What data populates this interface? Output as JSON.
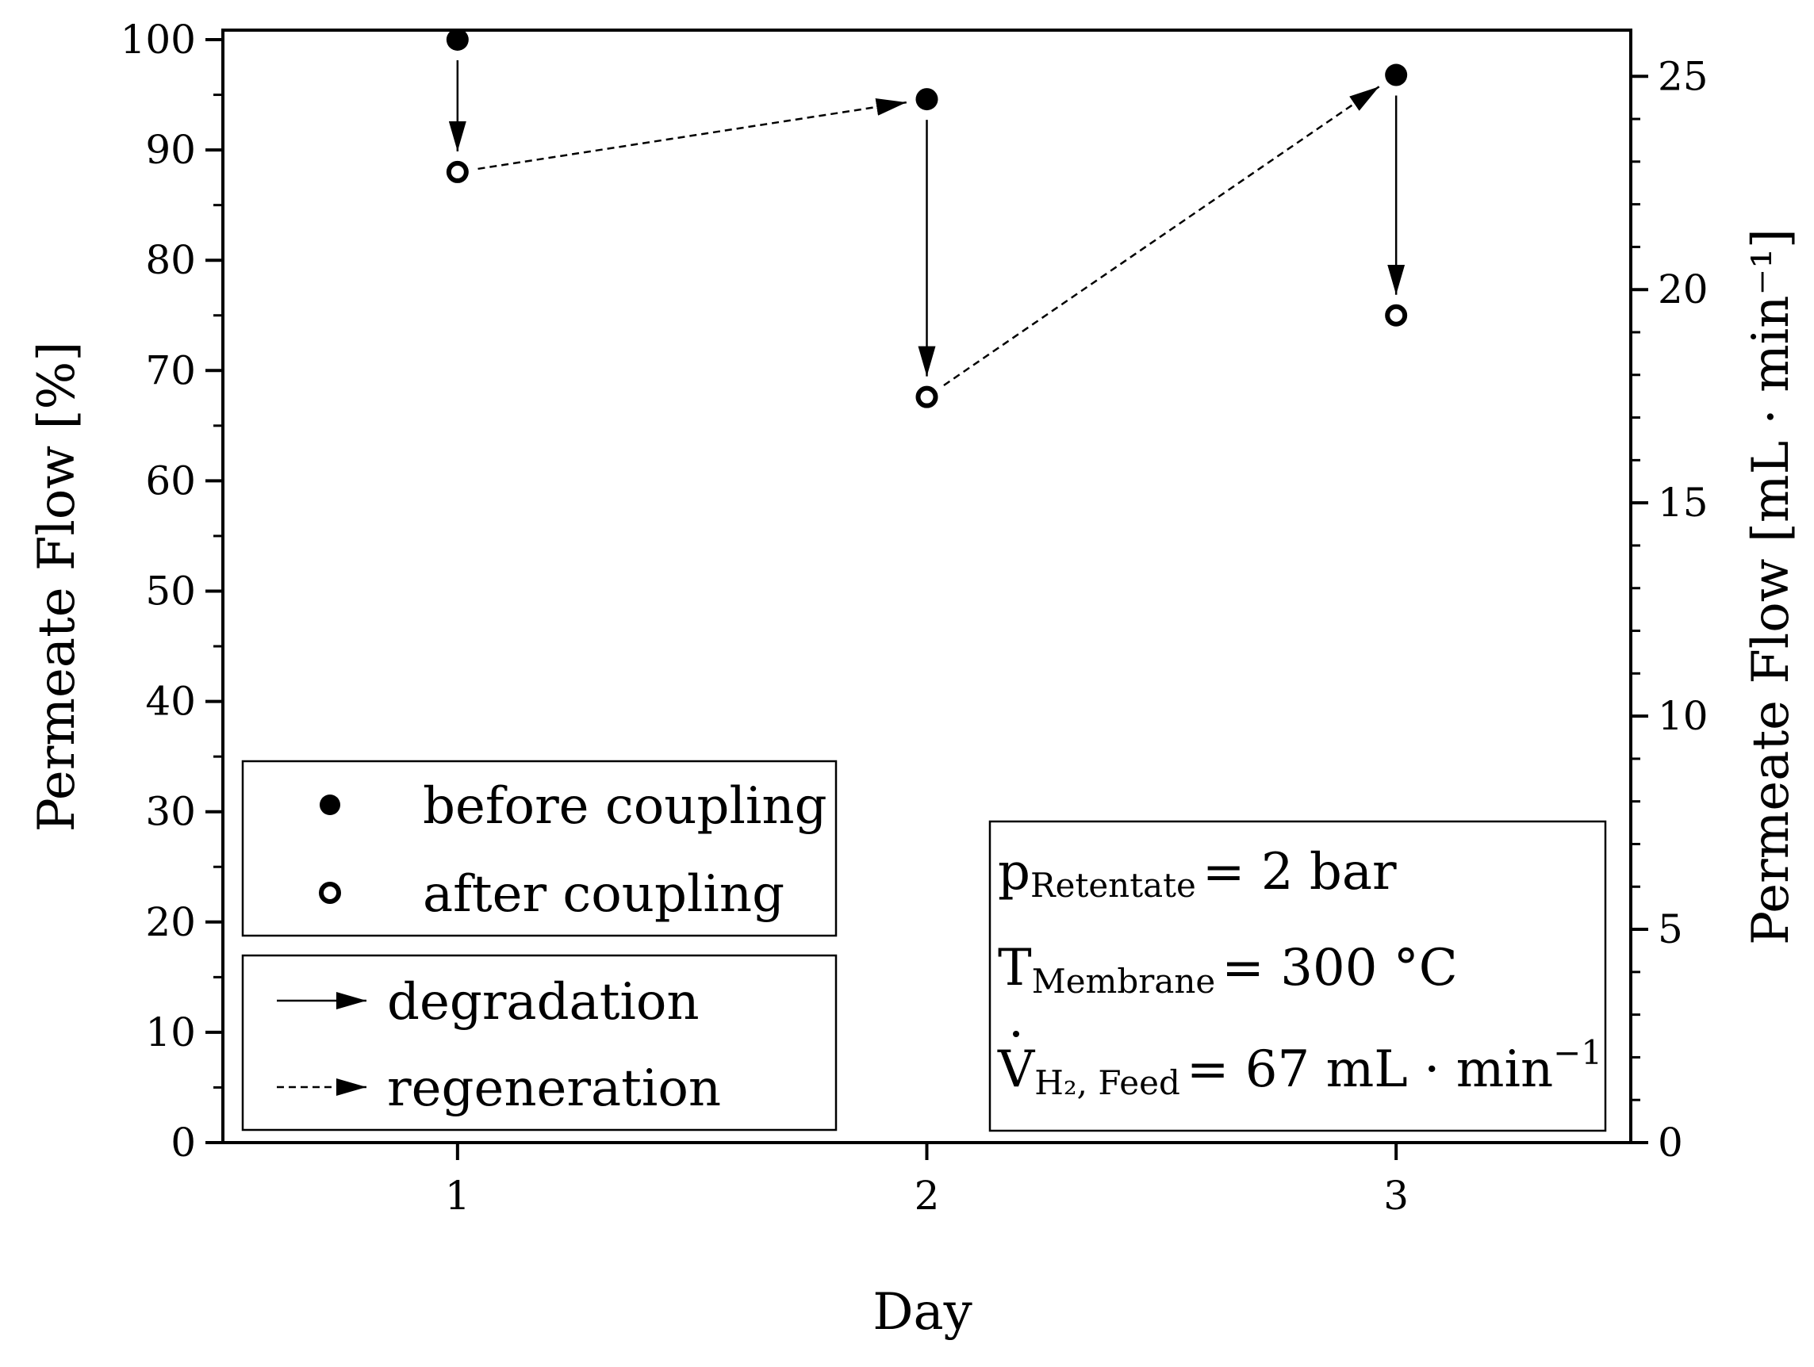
{
  "chart_data": {
    "type": "scatter",
    "xlabel": "Day",
    "ylabel_left": "Permeate Flow [%]",
    "ylabel_right": "Permeate Flow [mL · min⁻¹]",
    "xlim": [
      0.5,
      3.5
    ],
    "ylim_left": [
      0,
      100
    ],
    "ylim_right": [
      0,
      25.86
    ],
    "x_ticks": [
      "1",
      "2",
      "3"
    ],
    "y_left_ticks": [
      "0",
      "10",
      "20",
      "30",
      "40",
      "50",
      "60",
      "70",
      "80",
      "90",
      "100"
    ],
    "y_right_ticks": [
      "0",
      "5",
      "10",
      "15",
      "20",
      "25"
    ],
    "grid": false,
    "series": [
      {
        "name": "before coupling",
        "marker": "filled-circle",
        "x": [
          1,
          2,
          3
        ],
        "y": [
          100,
          94.6,
          96.8
        ]
      },
      {
        "name": "after coupling",
        "marker": "open-circle",
        "x": [
          1,
          2,
          3
        ],
        "y": [
          88,
          67.6,
          75
        ]
      }
    ],
    "arrows": [
      {
        "type": "degradation",
        "style": "solid",
        "from": [
          1,
          100
        ],
        "to": [
          1,
          88
        ]
      },
      {
        "type": "degradation",
        "style": "solid",
        "from": [
          2,
          94.6
        ],
        "to": [
          2,
          67.6
        ]
      },
      {
        "type": "degradation",
        "style": "solid",
        "from": [
          3,
          96.8
        ],
        "to": [
          3,
          75
        ]
      },
      {
        "type": "regeneration",
        "style": "dashed",
        "from": [
          1,
          88
        ],
        "to": [
          2,
          94.6
        ]
      },
      {
        "type": "regeneration",
        "style": "dashed",
        "from": [
          2,
          67.6
        ],
        "to": [
          3,
          96.8
        ]
      }
    ],
    "legend_markers": {
      "position": "bottom-left",
      "entries": [
        "before coupling",
        "after coupling"
      ]
    },
    "legend_arrows": {
      "position": "bottom-left",
      "entries": [
        "degradation",
        "regeneration"
      ]
    },
    "info_box": {
      "position": "bottom-right",
      "line1": {
        "symbol": "p",
        "sub": "Retentate",
        "value": "= 2 bar"
      },
      "line2": {
        "symbol": "T",
        "sub": "Membrane",
        "value": "= 300 °C"
      },
      "line3": {
        "symbol": "V",
        "sub": "H₂, Feed",
        "value": "= 67 mL · min",
        "sup": "−1"
      }
    }
  }
}
